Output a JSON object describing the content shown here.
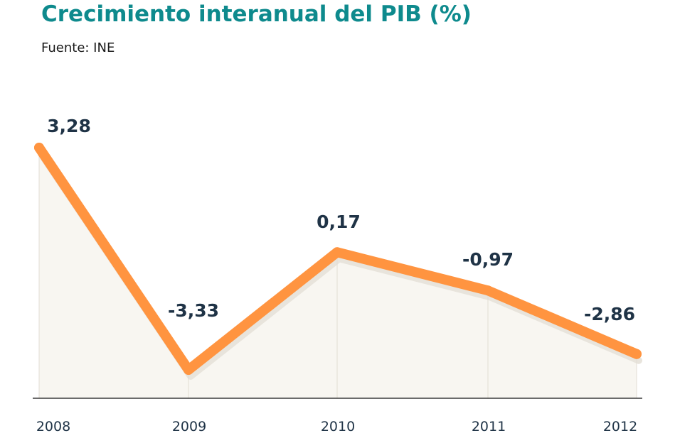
{
  "title": "Crecimiento interanual del PIB (%)",
  "subtitle": "Fuente: INE",
  "colors": {
    "title": "#0e8a8d",
    "line": "#ff9440",
    "area": "#f8f6f1",
    "text": "#1f3346"
  },
  "chart_data": {
    "type": "line",
    "title": "Crecimiento interanual del PIB (%)",
    "subtitle": "Fuente: INE",
    "xlabel": "",
    "ylabel": "",
    "categories": [
      "2008",
      "2009",
      "2010",
      "2011",
      "2012"
    ],
    "series": [
      {
        "values": [
          3.28,
          -3.33,
          0.17,
          -0.97,
          -2.86
        ],
        "labels": [
          "3,28",
          "-3,33",
          "0,17",
          "-0,97",
          "-2,86"
        ]
      }
    ],
    "ylim": [
      -3.33,
      3.28
    ],
    "grid": false,
    "legend": "none"
  }
}
